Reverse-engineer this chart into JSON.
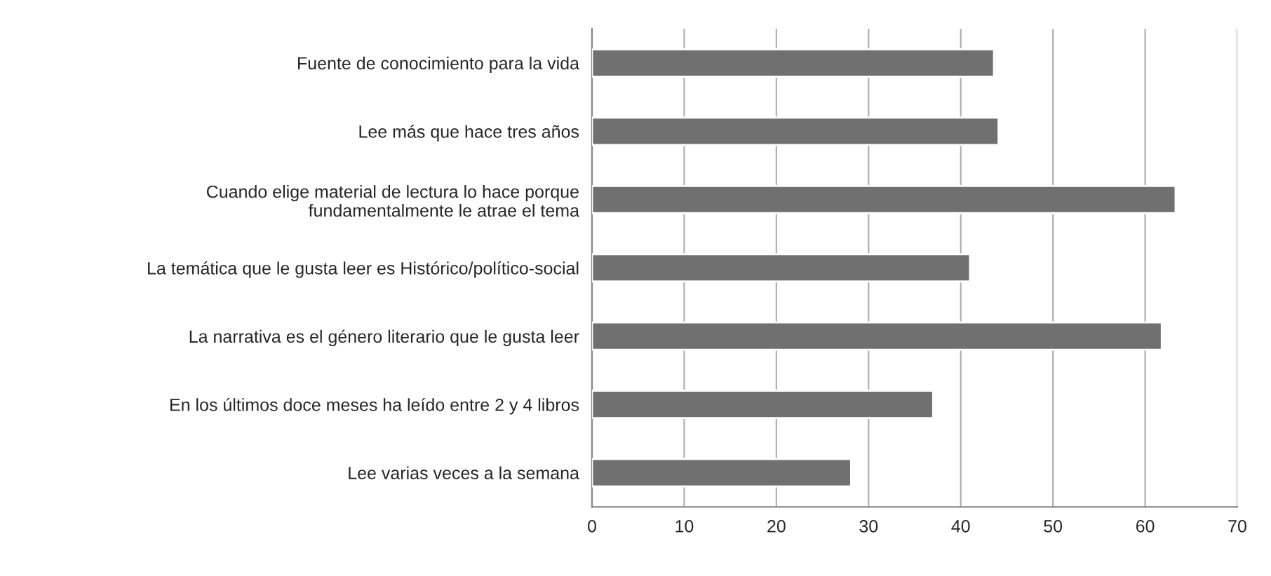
{
  "chart_data": {
    "type": "bar",
    "orientation": "horizontal",
    "categories": [
      "Fuente de conocimiento para la vida",
      "Lee más que hace tres años",
      "Cuando elige material de lectura lo hace porque\nfundamentalmente le atrae el tema",
      "La temática que le gusta leer es Histórico/político-social",
      "La narrativa es el género literario que le gusta leer",
      "En los últimos doce meses ha leído entre 2 y 4 libros",
      "Lee varias veces a la semana"
    ],
    "values": [
      43.6,
      44.1,
      63.3,
      41.0,
      61.8,
      37.0,
      28.1
    ],
    "color": "#707070",
    "xlim": [
      0,
      70
    ],
    "xticks": [
      0,
      10,
      20,
      30,
      40,
      50,
      60,
      70
    ],
    "grid": "x"
  }
}
